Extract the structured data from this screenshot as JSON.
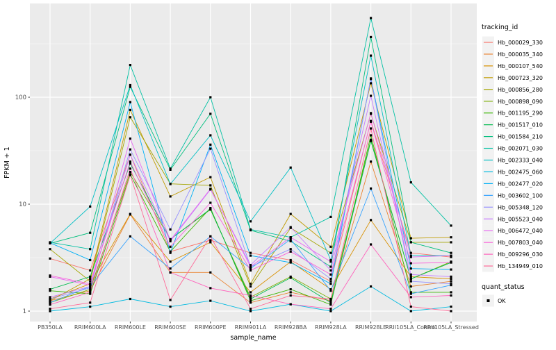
{
  "chart_data": {
    "type": "line",
    "title": "",
    "xlabel": "sample_name",
    "ylabel": "FPKM + 1",
    "y_scale": "log10",
    "y_ticks": [
      "1",
      "10",
      "100"
    ],
    "y_tick_values": [
      1,
      10,
      100
    ],
    "y_minor_values": [
      3.162,
      31.62,
      316.2
    ],
    "ylim": [
      0.8,
      750
    ],
    "grid": true,
    "panel_bg": "#EBEBEB",
    "grid_major_color": "#FFFFFF",
    "grid_minor_color": "#FFFFFF",
    "tick_label_color": "#4D4D4D",
    "axis_title_color": "#000000",
    "point_marker": "black-square",
    "point_color": "#000000",
    "categories": [
      "PB350LA",
      "RRIM600LA",
      "RRIM600LE",
      "RRIM600SE",
      "RRIM600PE",
      "RRIM901LA",
      "RRIM928BA",
      "RRIM928LA",
      "RRIM928LE",
      "RRII105LA_Control",
      "RRII105LA_Stressed"
    ],
    "legend": {
      "title": "tracking_id",
      "position": "right",
      "key_fill": "#F2F2F2"
    },
    "legend2": {
      "title": "quant_status",
      "entries": [
        {
          "label": "OK",
          "marker": "black-square"
        }
      ]
    },
    "series": [
      {
        "name": "Hb_000029_330",
        "color": "#F8766D",
        "values": [
          3.1,
          2.4,
          29,
          3.6,
          4.6,
          3.5,
          3.0,
          1.9,
          60,
          3.5,
          3.2
        ]
      },
      {
        "name": "Hb_000035_340",
        "color": "#EA8331",
        "values": [
          1.25,
          1.55,
          8.0,
          2.3,
          2.3,
          1.2,
          1.5,
          1.25,
          25,
          1.7,
          1.9
        ]
      },
      {
        "name": "Hb_000107_540",
        "color": "#D89000",
        "values": [
          1.3,
          1.8,
          8.1,
          2.9,
          4.4,
          1.5,
          2.9,
          1.6,
          7.1,
          2.1,
          2.0
        ]
      },
      {
        "name": "Hb_000723_320",
        "color": "#C09B00",
        "values": [
          1.25,
          2.0,
          76,
          11.8,
          17.9,
          1.8,
          8.1,
          4.0,
          135,
          4.8,
          4.9
        ]
      },
      {
        "name": "Hb_000856_280",
        "color": "#A3A500",
        "values": [
          3.8,
          1.9,
          65,
          15.5,
          15.0,
          1.7,
          6.0,
          3.5,
          70,
          4.4,
          4.4
        ]
      },
      {
        "name": "Hb_000898_090",
        "color": "#7CAE00",
        "values": [
          1.2,
          1.6,
          20,
          4.7,
          8.9,
          1.35,
          2.1,
          1.3,
          40,
          2.0,
          2.9
        ]
      },
      {
        "name": "Hb_001195_290",
        "color": "#39B600",
        "values": [
          1.55,
          1.45,
          19,
          3.6,
          9.2,
          1.25,
          1.6,
          1.15,
          44,
          1.5,
          1.5
        ]
      },
      {
        "name": "Hb_001517_010",
        "color": "#00BB4E",
        "values": [
          1.6,
          2.1,
          24,
          4.7,
          9.0,
          1.3,
          2.05,
          1.2,
          39,
          2.0,
          2.85
        ]
      },
      {
        "name": "Hb_001584_210",
        "color": "#00BF7D",
        "values": [
          4.3,
          5.4,
          125,
          21,
          70,
          5.7,
          4.5,
          2.6,
          365,
          4.4,
          3.5
        ]
      },
      {
        "name": "Hb_002071_030",
        "color": "#00C1A3",
        "values": [
          4.4,
          3.8,
          200,
          21.5,
          100,
          5.8,
          4.9,
          7.6,
          550,
          16,
          6.3
        ]
      },
      {
        "name": "Hb_002333_040",
        "color": "#00BFC4",
        "values": [
          4.3,
          9.5,
          130,
          15.4,
          44,
          6.9,
          22,
          3.0,
          245,
          3.3,
          3.3
        ]
      },
      {
        "name": "Hb_002475_060",
        "color": "#00BAE0",
        "values": [
          1.0,
          1.1,
          1.3,
          1.1,
          1.25,
          1.0,
          1.16,
          1.0,
          1.7,
          1.0,
          1.1
        ]
      },
      {
        "name": "Hb_002477_020",
        "color": "#00B0F6",
        "values": [
          4.35,
          3.0,
          90,
          3.5,
          36,
          3.3,
          2.85,
          1.8,
          150,
          2.5,
          2.45
        ]
      },
      {
        "name": "Hb_003602_100",
        "color": "#35A2FF",
        "values": [
          1.2,
          1.7,
          5.0,
          2.5,
          5.0,
          2.5,
          4.7,
          1.55,
          14,
          1.45,
          1.75
        ]
      },
      {
        "name": "Hb_005348_120",
        "color": "#9590FF",
        "values": [
          1.3,
          1.65,
          32.5,
          5.8,
          33,
          2.6,
          3.8,
          2.0,
          148,
          1.9,
          1.8
        ]
      },
      {
        "name": "Hb_005523_040",
        "color": "#C77CFF",
        "values": [
          1.35,
          1.7,
          29,
          4.5,
          13.7,
          2.7,
          6.1,
          2.4,
          103,
          2.2,
          2.1
        ]
      },
      {
        "name": "Hb_006472_040",
        "color": "#E76BF3",
        "values": [
          2.1,
          1.75,
          41,
          4.6,
          13.9,
          2.6,
          4.9,
          2.9,
          71,
          3.2,
          3.3
        ]
      },
      {
        "name": "Hb_007803_040",
        "color": "#FA62DB",
        "values": [
          2.15,
          1.8,
          25,
          4.0,
          10.3,
          2.4,
          3.6,
          2.2,
          59,
          2.8,
          2.85
        ]
      },
      {
        "name": "Hb_009296_030",
        "color": "#FF62BC",
        "values": [
          1.15,
          1.5,
          21.5,
          2.3,
          1.64,
          1.4,
          1.16,
          1.05,
          4.2,
          1.35,
          1.4
        ]
      },
      {
        "name": "Hb_134949_010",
        "color": "#FF6A98",
        "values": [
          1.05,
          1.2,
          18.7,
          1.27,
          5.0,
          1.05,
          1.4,
          1.3,
          51,
          1.1,
          1.0
        ]
      }
    ]
  }
}
